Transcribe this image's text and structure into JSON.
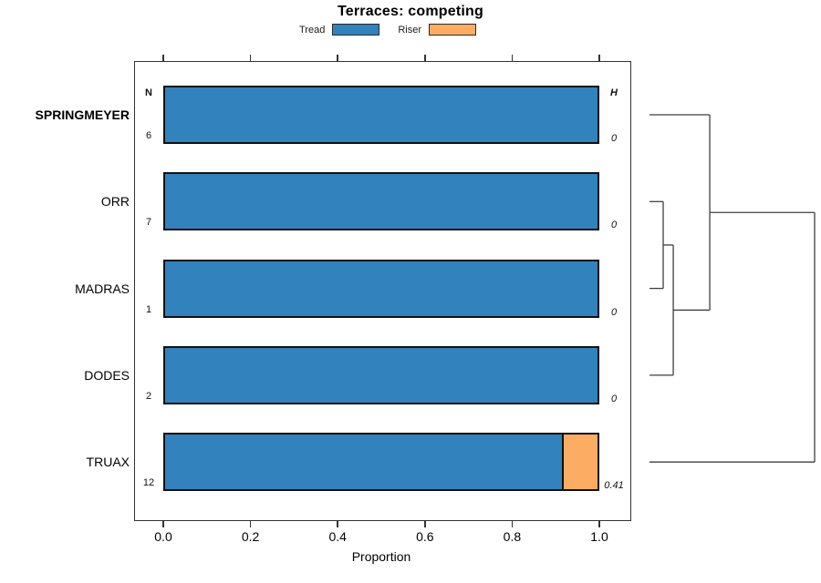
{
  "title": "Terraces: competing",
  "legend": {
    "items": [
      {
        "label": "Tread",
        "color": "#3182bd"
      },
      {
        "label": "Riser",
        "color": "#fcad63"
      }
    ]
  },
  "chart_data": {
    "type": "bar",
    "orientation": "horizontal",
    "stacked": true,
    "title": "Terraces: competing",
    "xlabel": "Proportion",
    "xlim": [
      0,
      1
    ],
    "grid": false,
    "legend_position": "top",
    "x_ticks": [
      {
        "label": "0.0",
        "value": 0.0
      },
      {
        "label": "0.2",
        "value": 0.2
      },
      {
        "label": "0.4",
        "value": 0.4
      },
      {
        "label": "0.6",
        "value": 0.6
      },
      {
        "label": "0.8",
        "value": 0.8
      },
      {
        "label": "1.0",
        "value": 1.0
      }
    ],
    "columns": {
      "left_header": "N",
      "right_header": "H"
    },
    "series": [
      "Tread",
      "Riser"
    ],
    "rows": [
      {
        "label": "SPRINGMEYER",
        "emphasis": true,
        "n": "6",
        "h": "0",
        "values": {
          "Tread": 1.0,
          "Riser": 0.0
        }
      },
      {
        "label": "ORR",
        "emphasis": false,
        "n": "7",
        "h": "0",
        "values": {
          "Tread": 1.0,
          "Riser": 0.0
        }
      },
      {
        "label": "MADRAS",
        "emphasis": false,
        "n": "1",
        "h": "0",
        "values": {
          "Tread": 1.0,
          "Riser": 0.0
        }
      },
      {
        "label": "DODES",
        "emphasis": false,
        "n": "2",
        "h": "0",
        "values": {
          "Tread": 1.0,
          "Riser": 0.0
        }
      },
      {
        "label": "TRUAX",
        "emphasis": false,
        "n": "12",
        "h": "0.41",
        "values": {
          "Tread": 0.917,
          "Riser": 0.083
        }
      }
    ],
    "dendrogram": {
      "position": "right",
      "leaf_order": [
        "SPRINGMEYER",
        "ORR",
        "MADRAS",
        "DODES",
        "TRUAX"
      ],
      "merges": [
        {
          "children": [
            "ORR",
            "MADRAS"
          ],
          "height": 0.083
        },
        {
          "children": [
            "@0",
            "DODES"
          ],
          "height": 0.144
        },
        {
          "children": [
            "SPRINGMEYER",
            "@1"
          ],
          "height": 0.365
        },
        {
          "children": [
            "@2",
            "TRUAX"
          ],
          "height": 1.0
        }
      ]
    }
  }
}
